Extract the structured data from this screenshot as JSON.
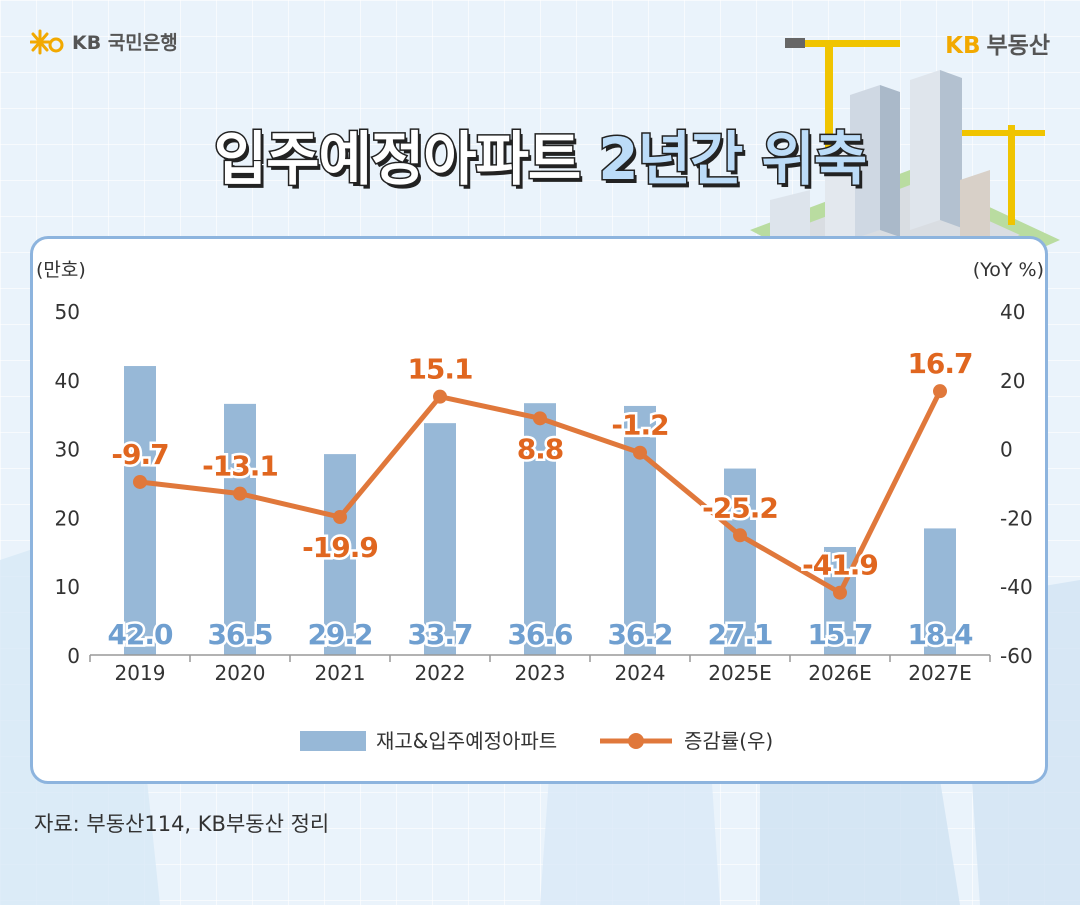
{
  "header": {
    "bank_label": "KB 국민은행",
    "brand_prefix": "KB",
    "brand_label": "부동산"
  },
  "title": {
    "part1": "입주예정아파트",
    "part2": "2년간 위축"
  },
  "source": "자료: 부동산114, KB부동산 정리",
  "colors": {
    "bar": "#97b8d7",
    "line": "#e0783b",
    "bar_label": "#6f9fd0",
    "line_label": "#e0661f"
  },
  "chart_data": {
    "type": "bar",
    "categories": [
      "2019",
      "2020",
      "2021",
      "2022",
      "2023",
      "2024",
      "2025E",
      "2026E",
      "2027E"
    ],
    "series": [
      {
        "name": "재고&입주예정아파트",
        "type": "bar",
        "axis": "left",
        "values": [
          42.0,
          36.5,
          29.2,
          33.7,
          36.6,
          36.2,
          27.1,
          15.7,
          18.4
        ],
        "labels": [
          "42.0",
          "36.5",
          "29.2",
          "33.7",
          "36.6",
          "36.2",
          "27.1",
          "15.7",
          "18.4"
        ]
      },
      {
        "name": "증감률(우)",
        "type": "line",
        "axis": "right",
        "values": [
          -9.7,
          -13.1,
          -19.9,
          15.1,
          8.8,
          -1.2,
          -25.2,
          -41.9,
          16.7
        ],
        "labels": [
          "-9.7",
          "-13.1",
          "-19.9",
          "15.1",
          "8.8",
          "-1.2",
          "-25.2",
          "-41.9",
          "16.7"
        ]
      }
    ],
    "ylabel": "(만호)",
    "y2label": "(YoY %)",
    "ylim": [
      0,
      50
    ],
    "y2lim": [
      -60,
      40
    ],
    "yticks": [
      "0",
      "10",
      "20",
      "30",
      "40",
      "50"
    ],
    "y2ticks": [
      "-60",
      "-40",
      "-20",
      "0",
      "20",
      "40"
    ],
    "legend_position": "bottom",
    "grid": false
  }
}
